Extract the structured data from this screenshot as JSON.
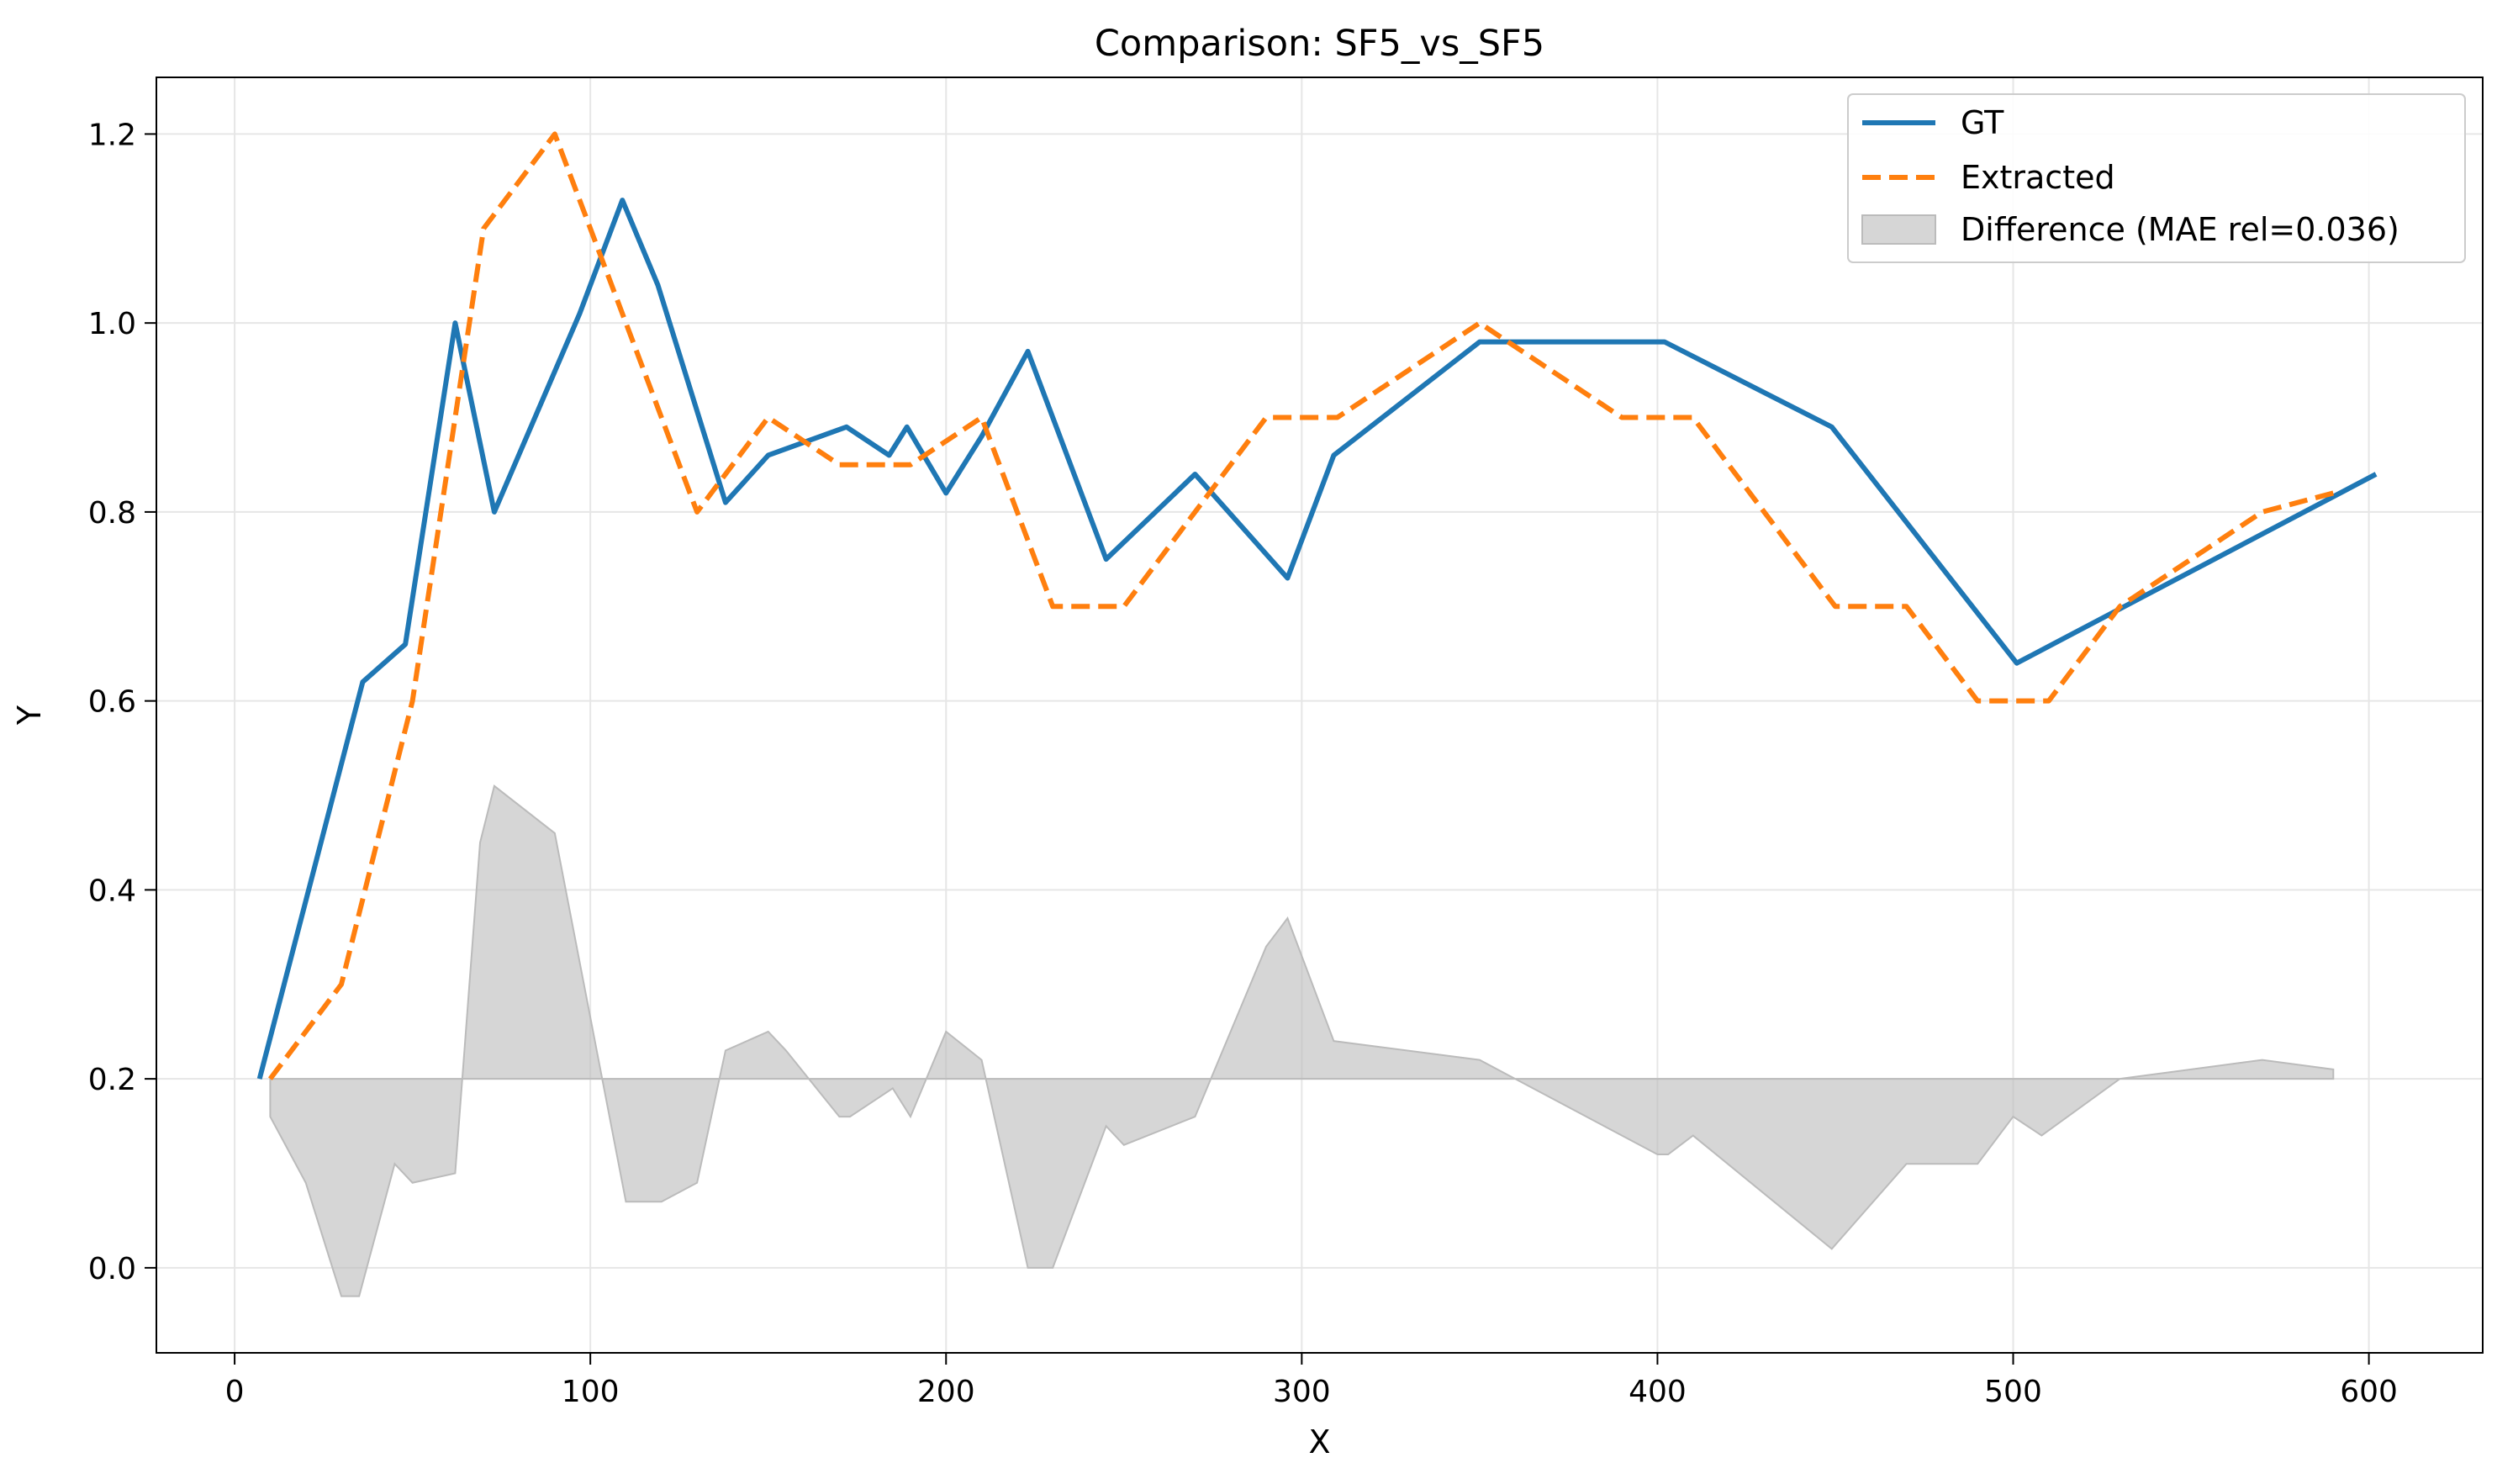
{
  "chart_data": {
    "type": "line",
    "title": "Comparison: SF5_vs_SF5",
    "xlabel": "X",
    "ylabel": "Y",
    "xlim": [
      -22,
      632
    ],
    "ylim": [
      -0.09,
      1.26
    ],
    "xticks": [
      0,
      100,
      200,
      300,
      400,
      500,
      600
    ],
    "yticks": [
      0.0,
      0.2,
      0.4,
      0.6,
      0.8,
      1.0,
      1.2
    ],
    "grid": true,
    "legend_position": "top-right",
    "series": [
      {
        "name": "GT",
        "style": "solid",
        "color": "#1f77b4",
        "x": [
          7,
          36,
          48,
          62,
          73,
          97,
          109,
          119,
          138,
          150,
          172,
          184,
          189,
          200,
          210,
          223,
          245,
          270,
          296,
          309,
          350,
          402,
          449,
          501,
          602
        ],
        "y": [
          0.2,
          0.62,
          0.66,
          1.0,
          0.8,
          1.01,
          1.13,
          1.04,
          0.81,
          0.86,
          0.89,
          0.86,
          0.89,
          0.82,
          0.88,
          0.97,
          0.75,
          0.84,
          0.73,
          0.86,
          0.98,
          0.98,
          0.89,
          0.64,
          0.84
        ]
      },
      {
        "name": "Extracted",
        "style": "dashed",
        "color": "#ff7f0e",
        "x": [
          10,
          30,
          50,
          70,
          90,
          110,
          130,
          150,
          170,
          190,
          210,
          230,
          250,
          270,
          290,
          310,
          330,
          350,
          370,
          390,
          410,
          430,
          450,
          470,
          490,
          510,
          530,
          550,
          570,
          590
        ],
        "y": [
          0.2,
          0.3,
          0.6,
          1.1,
          1.2,
          1.0,
          0.8,
          0.9,
          0.85,
          0.85,
          0.9,
          0.7,
          0.7,
          0.8,
          0.9,
          0.9,
          0.95,
          1.0,
          0.95,
          0.9,
          0.9,
          0.8,
          0.7,
          0.7,
          0.6,
          0.6,
          0.7,
          0.75,
          0.8,
          0.82
        ]
      }
    ],
    "difference": {
      "name": "Difference (MAE rel=0.036)",
      "color": "#bbbbbb",
      "baseline": 0.2,
      "x": [
        10,
        20,
        30,
        35,
        45,
        50,
        62,
        69,
        73,
        90,
        110,
        120,
        130,
        138,
        150,
        155,
        170,
        173,
        185,
        190,
        200,
        210,
        223,
        230,
        245,
        250,
        270,
        290,
        296,
        309,
        350,
        360,
        400,
        403,
        410,
        449,
        470,
        490,
        500,
        508,
        530,
        570,
        590
      ],
      "y": [
        0.16,
        0.09,
        -0.03,
        -0.03,
        0.11,
        0.09,
        0.1,
        0.45,
        0.51,
        0.46,
        0.07,
        0.07,
        0.09,
        0.23,
        0.25,
        0.23,
        0.16,
        0.16,
        0.19,
        0.16,
        0.25,
        0.22,
        0.0,
        0.0,
        0.15,
        0.13,
        0.16,
        0.34,
        0.37,
        0.24,
        0.22,
        0.2,
        0.12,
        0.12,
        0.14,
        0.02,
        0.11,
        0.11,
        0.16,
        0.14,
        0.2,
        0.22,
        0.21
      ]
    }
  }
}
